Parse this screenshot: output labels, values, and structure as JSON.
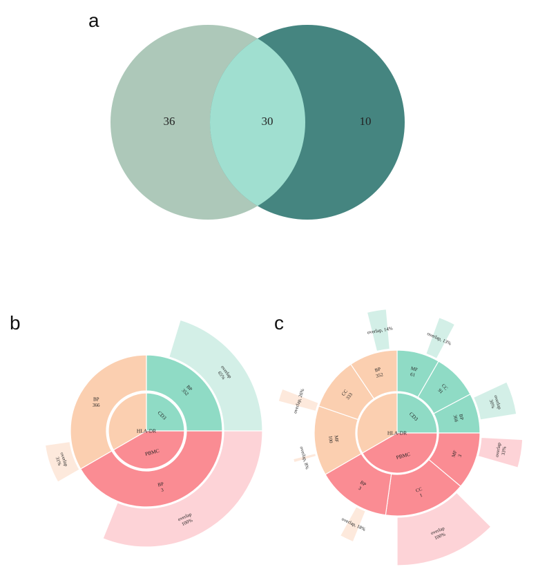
{
  "panels": {
    "a": "a",
    "b": "b",
    "c": "c"
  },
  "colors": {
    "venn_left": "#adc8b9",
    "venn_right": "#458580",
    "venn_overlap": "#a0dfd0",
    "cd3": "#8fdbc5",
    "hladr": "#fbcfb0",
    "pbmc": "#fa8c93",
    "cd3_light": "#d3efe7",
    "hladr_light": "#fde9dc",
    "pbmc_light": "#fdd3d7"
  },
  "venn": {
    "left": "36",
    "overlap": "30",
    "right": "10"
  },
  "sunburst_b": {
    "center": [
      {
        "label": "CD3",
        "color": "cd3"
      },
      {
        "label": "PBMC",
        "color": "pbmc"
      },
      {
        "label": "HLA-DR",
        "color": "hladr"
      }
    ],
    "middle": [
      {
        "term": "BP",
        "count": "352",
        "color": "cd3"
      },
      {
        "term": "BP",
        "count": "3",
        "color": "pbmc"
      },
      {
        "term": "BP",
        "count": "366",
        "color": "hladr"
      }
    ],
    "outer": [
      {
        "label": "overlap",
        "pct": "65%",
        "color": "cd3_light"
      },
      {
        "label": "overlap",
        "pct": "100%",
        "color": "pbmc_light"
      },
      {
        "label": "overlap",
        "pct": "31%",
        "color": "hladr_light"
      }
    ]
  },
  "sunburst_c": {
    "center": [
      {
        "label": "CD3",
        "color": "cd3"
      },
      {
        "label": "PBMC",
        "color": "pbmc"
      },
      {
        "label": "HLA-DR",
        "color": "hladr"
      }
    ],
    "middle": [
      {
        "term": "BP",
        "count": "366",
        "color": "cd3"
      },
      {
        "term": "CC",
        "count": "91",
        "color": "cd3"
      },
      {
        "term": "MF",
        "count": "61",
        "color": "cd3"
      },
      {
        "term": "MF",
        "count": "3",
        "color": "pbmc"
      },
      {
        "term": "CC",
        "count": "1",
        "color": "pbmc"
      },
      {
        "term": "BP",
        "count": "3",
        "color": "pbmc"
      },
      {
        "term": "MF",
        "count": "100",
        "color": "hladr"
      },
      {
        "term": "CC",
        "count": "333",
        "color": "hladr"
      },
      {
        "term": "BP",
        "count": "352",
        "color": "hladr"
      }
    ],
    "outer": [
      {
        "label": "overlap",
        "pct": "30%",
        "color": "cd3_light"
      },
      {
        "label": "overlap, 13%",
        "pct": "",
        "color": "cd3_light"
      },
      {
        "label": "overlap, 14%",
        "pct": "",
        "color": "cd3_light"
      },
      {
        "label": "overlap",
        "pct": "33%",
        "color": "pbmc_light"
      },
      {
        "label": "overlap",
        "pct": "100%",
        "color": "pbmc_light"
      },
      {
        "label": "overlap, 18%",
        "pct": "",
        "color": "hladr_light"
      },
      {
        "label": "overlap, 8%",
        "pct": "",
        "color": "hladr_light"
      },
      {
        "label": "overlap, 26%",
        "pct": "",
        "color": "hladr_light"
      }
    ]
  }
}
